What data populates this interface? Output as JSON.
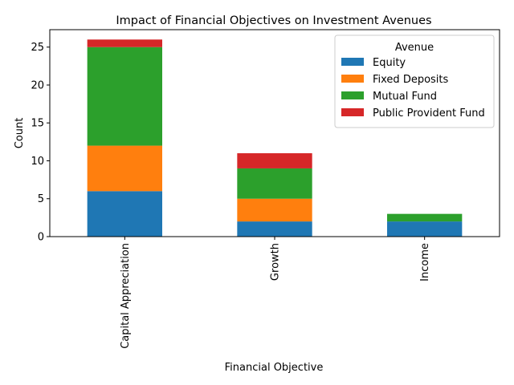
{
  "chart_data": {
    "type": "bar",
    "stacked": true,
    "title": "Impact of Financial Objectives on Investment Avenues",
    "xlabel": "Financial Objective",
    "ylabel": "Count",
    "categories": [
      "Capital Appreciation",
      "Growth",
      "Income"
    ],
    "ylim": [
      0,
      27.3
    ],
    "yticks": [
      0,
      5,
      10,
      15,
      20,
      25
    ],
    "grid": false,
    "legend": {
      "title": "Avenue",
      "placement": "top-right"
    },
    "series": [
      {
        "name": "Equity",
        "color": "#1f77b4",
        "values": [
          6,
          2,
          2
        ]
      },
      {
        "name": "Fixed Deposits",
        "color": "#ff7f0e",
        "values": [
          6,
          3,
          0
        ]
      },
      {
        "name": "Mutual Fund",
        "color": "#2ca02c",
        "values": [
          13,
          4,
          1
        ]
      },
      {
        "name": "Public Provident Fund",
        "color": "#d62728",
        "values": [
          1,
          2,
          0
        ]
      }
    ]
  }
}
